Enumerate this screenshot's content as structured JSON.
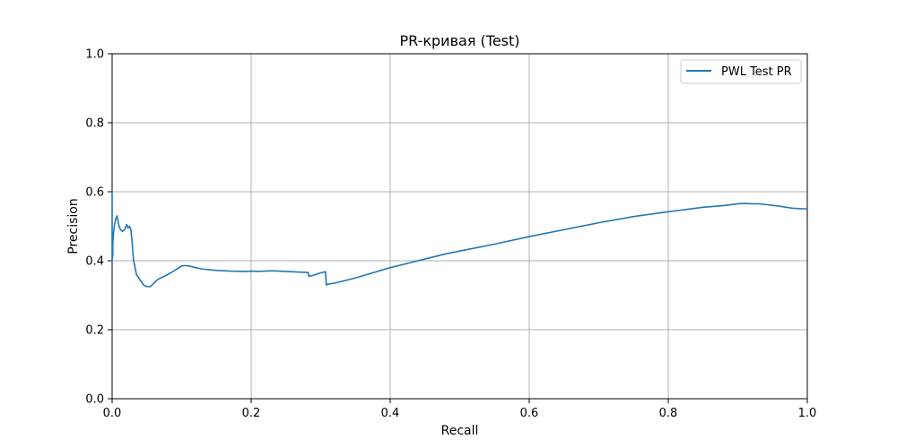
{
  "chart_data": {
    "type": "line",
    "title": "PR-кривая (Test)",
    "xlabel": "Recall",
    "ylabel": "Precision",
    "xlim": [
      0,
      1
    ],
    "ylim": [
      0,
      1
    ],
    "xticks": [
      "0.0",
      "0.2",
      "0.4",
      "0.6",
      "0.8",
      "1.0"
    ],
    "yticks": [
      "0.0",
      "0.2",
      "0.4",
      "0.6",
      "0.8",
      "1.0"
    ],
    "grid": true,
    "legend_position": "top-right",
    "series": [
      {
        "name": "PWL Test PR",
        "color": "#1f77b4",
        "x": [
          0.0,
          0.0,
          0.001,
          0.001,
          0.002,
          0.003,
          0.004,
          0.005,
          0.006,
          0.007,
          0.008,
          0.01,
          0.012,
          0.015,
          0.018,
          0.02,
          0.021,
          0.023,
          0.025,
          0.027,
          0.029,
          0.03,
          0.031,
          0.033,
          0.035,
          0.04,
          0.045,
          0.05,
          0.055,
          0.06,
          0.065,
          0.07,
          0.08,
          0.09,
          0.1,
          0.105,
          0.11,
          0.12,
          0.13,
          0.15,
          0.17,
          0.19,
          0.2,
          0.21,
          0.22,
          0.23,
          0.24,
          0.26,
          0.28,
          0.282,
          0.283,
          0.29,
          0.3,
          0.307,
          0.308,
          0.31,
          0.32,
          0.33,
          0.35,
          0.37,
          0.4,
          0.42,
          0.45,
          0.48,
          0.5,
          0.55,
          0.6,
          0.65,
          0.7,
          0.75,
          0.8,
          0.85,
          0.88,
          0.9,
          0.91,
          0.92,
          0.93,
          0.94,
          0.96,
          0.98,
          1.0
        ],
        "y": [
          0.6,
          0.4,
          0.42,
          0.45,
          0.48,
          0.5,
          0.51,
          0.52,
          0.525,
          0.53,
          0.52,
          0.5,
          0.49,
          0.485,
          0.49,
          0.5,
          0.505,
          0.495,
          0.5,
          0.49,
          0.45,
          0.42,
          0.4,
          0.38,
          0.36,
          0.345,
          0.33,
          0.325,
          0.325,
          0.335,
          0.345,
          0.35,
          0.36,
          0.372,
          0.385,
          0.386,
          0.385,
          0.38,
          0.376,
          0.372,
          0.37,
          0.369,
          0.37,
          0.369,
          0.37,
          0.371,
          0.37,
          0.368,
          0.366,
          0.366,
          0.355,
          0.358,
          0.365,
          0.368,
          0.33,
          0.332,
          0.335,
          0.34,
          0.35,
          0.362,
          0.38,
          0.39,
          0.405,
          0.42,
          0.428,
          0.448,
          0.47,
          0.49,
          0.51,
          0.528,
          0.542,
          0.555,
          0.56,
          0.565,
          0.566,
          0.565,
          0.565,
          0.563,
          0.558,
          0.552,
          0.55
        ]
      }
    ]
  }
}
